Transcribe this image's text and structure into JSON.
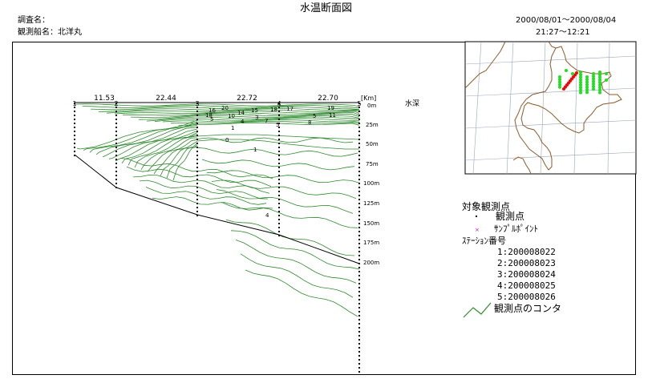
{
  "header": {
    "title": "水温断面図",
    "investigator_label": "調査名：",
    "vessel_label": "観測船名：北洋丸",
    "date_range": "2000/08/01～2000/08/04",
    "time_range": "21:27～12:21"
  },
  "section": {
    "distance_unit": "[Km]",
    "distances": [
      "11.53",
      "22.44",
      "22.72",
      "22.70"
    ],
    "station_numbers": [
      "1",
      "2",
      "3",
      "4",
      "5"
    ],
    "depth_axis_title": "水深",
    "depth_ticks": [
      "0m",
      "25m",
      "50m",
      "75m",
      "100m",
      "125m",
      "150m",
      "175m",
      "200m"
    ],
    "contour_labels": [
      "16",
      "20",
      "18",
      "14",
      "15",
      "18",
      "17",
      "19",
      "10",
      "5",
      "3",
      "7",
      "5",
      "11",
      "4",
      "8",
      "5",
      "1",
      "0",
      "1",
      "4"
    ]
  },
  "legend": {
    "heading": "対象観測点",
    "observation_point": "観測点",
    "sample_point": "ｻﾝﾌﾟﾙﾎﾟｲﾝﾄ",
    "station_heading": "ｽﾃｰｼｮﾝ番号",
    "stations": [
      "1:200008022",
      "2:200008023",
      "3:200008024",
      "4:200008025",
      "5:200008026"
    ],
    "contour_label": "観測点のコンタ"
  },
  "colors": {
    "contour": "#2e8b2e",
    "map_land": "#8b5a2b",
    "map_grid": "#9aa5c0",
    "map_stations_selected": "#ff0000",
    "map_stations_other": "#22dd22",
    "sample_marker": "#cc00cc"
  }
}
